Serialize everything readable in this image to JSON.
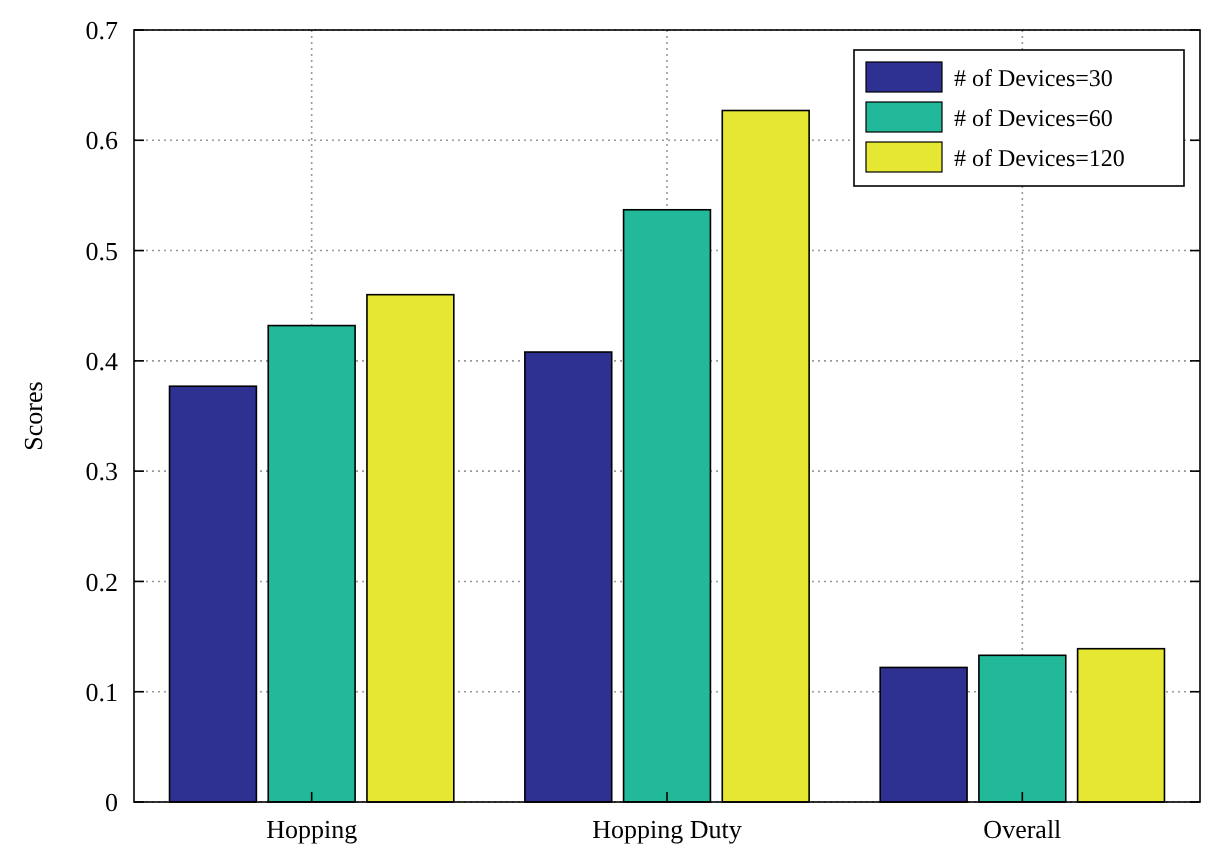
{
  "chart_data": {
    "type": "bar",
    "ylabel": "Scores",
    "categories": [
      "Hopping",
      "Hopping Duty",
      "Overall"
    ],
    "series": [
      {
        "name": "# of Devices=30",
        "color": "#2e3192",
        "values": [
          0.377,
          0.408,
          0.122
        ]
      },
      {
        "name": "# of Devices=60",
        "color": "#22b99a",
        "values": [
          0.432,
          0.537,
          0.133
        ]
      },
      {
        "name": "# of Devices=120",
        "color": "#e5e733",
        "values": [
          0.46,
          0.627,
          0.139
        ]
      }
    ],
    "ylim": [
      0,
      0.7
    ],
    "yticks": [
      0,
      0.1,
      0.2,
      0.3,
      0.4,
      0.5,
      0.6,
      0.7
    ],
    "grid": true,
    "legend": "top right"
  }
}
